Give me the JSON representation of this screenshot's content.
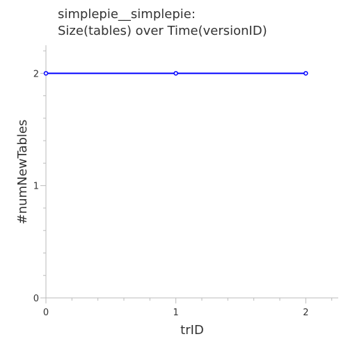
{
  "chart_data": {
    "type": "line",
    "title_lines": [
      "simplepie__simplepie:",
      "Size(tables) over Time(versionID)"
    ],
    "xlabel": "trID",
    "ylabel": "#numNewTables",
    "xlim": [
      0,
      2.25
    ],
    "ylim": [
      0,
      2.25
    ],
    "x_ticks": [
      0,
      1,
      2
    ],
    "y_ticks": [
      0,
      1,
      2
    ],
    "grid": false,
    "series": [
      {
        "x": [
          0,
          1,
          2
        ],
        "values": [
          2,
          2,
          2
        ],
        "color": "#0000ff"
      }
    ]
  }
}
